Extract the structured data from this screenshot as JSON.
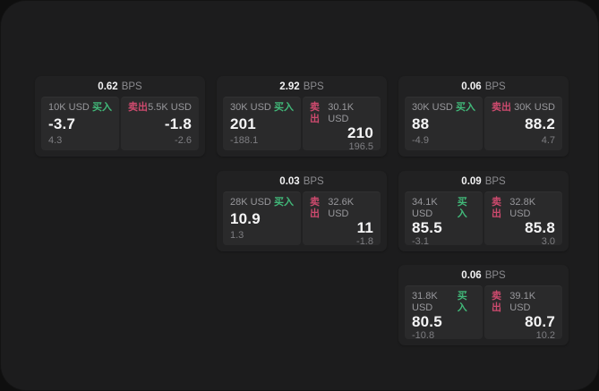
{
  "labels": {
    "bps_unit": "BPS",
    "buy": "买入",
    "sell": "卖出"
  },
  "colors": {
    "buy": "#41b879",
    "sell": "#cd4a6e"
  },
  "cards": [
    {
      "bps": "0.62",
      "buy": {
        "amount": "10K USD",
        "price": "-3.7",
        "delta": "4.3"
      },
      "sell": {
        "amount": "5.5K USD",
        "price": "-1.8",
        "delta": "-2.6"
      }
    },
    {
      "bps": "2.92",
      "buy": {
        "amount": "30K USD",
        "price": "201",
        "delta": "-188.1"
      },
      "sell": {
        "amount": "30.1K USD",
        "price": "210",
        "delta": "196.5"
      }
    },
    {
      "bps": "0.06",
      "buy": {
        "amount": "30K USD",
        "price": "88",
        "delta": "-4.9"
      },
      "sell": {
        "amount": "30K USD",
        "price": "88.2",
        "delta": "4.7"
      }
    },
    {
      "bps": "0.03",
      "buy": {
        "amount": "28K USD",
        "price": "10.9",
        "delta": "1.3"
      },
      "sell": {
        "amount": "32.6K USD",
        "price": "11",
        "delta": "-1.8"
      }
    },
    {
      "bps": "0.09",
      "buy": {
        "amount": "34.1K USD",
        "price": "85.5",
        "delta": "-3.1"
      },
      "sell": {
        "amount": "32.8K USD",
        "price": "85.8",
        "delta": "3.0"
      }
    },
    {
      "bps": "0.06",
      "buy": {
        "amount": "31.8K USD",
        "price": "80.5",
        "delta": "-10.8"
      },
      "sell": {
        "amount": "39.1K USD",
        "price": "80.7",
        "delta": "10.2"
      }
    }
  ]
}
